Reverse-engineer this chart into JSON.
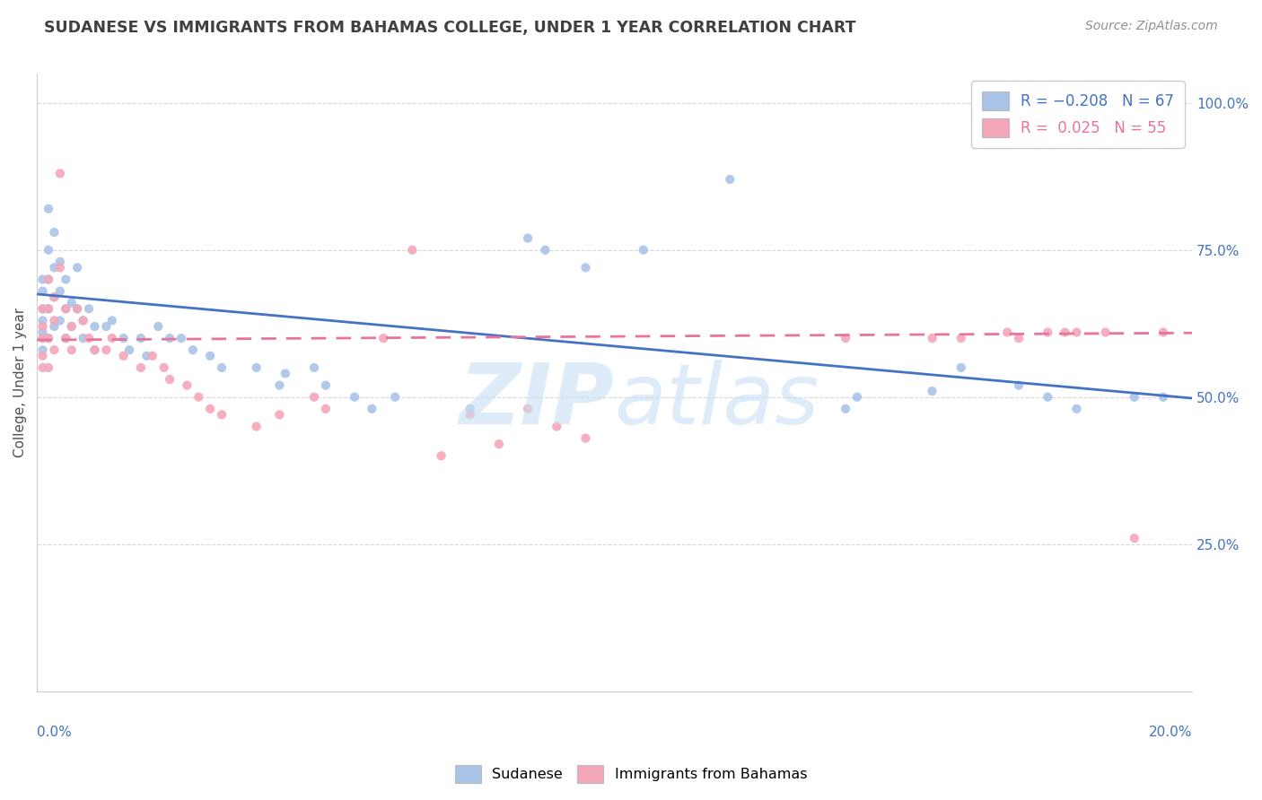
{
  "title": "SUDANESE VS IMMIGRANTS FROM BAHAMAS COLLEGE, UNDER 1 YEAR CORRELATION CHART",
  "source": "Source: ZipAtlas.com",
  "ylabel": "College, Under 1 year",
  "ylabel_right_ticks": [
    "100.0%",
    "75.0%",
    "50.0%",
    "25.0%"
  ],
  "ylabel_right_vals": [
    1.0,
    0.75,
    0.5,
    0.25
  ],
  "blue_scatter_x": [
    0.001,
    0.001,
    0.001,
    0.001,
    0.001,
    0.001,
    0.001,
    0.002,
    0.002,
    0.002,
    0.002,
    0.002,
    0.003,
    0.003,
    0.003,
    0.003,
    0.004,
    0.004,
    0.004,
    0.005,
    0.005,
    0.005,
    0.006,
    0.006,
    0.007,
    0.007,
    0.008,
    0.008,
    0.009,
    0.01,
    0.01,
    0.012,
    0.013,
    0.015,
    0.016,
    0.018,
    0.019,
    0.021,
    0.023,
    0.025,
    0.027,
    0.03,
    0.032,
    0.038,
    0.042,
    0.043,
    0.048,
    0.05,
    0.055,
    0.058,
    0.062,
    0.075,
    0.085,
    0.088,
    0.095,
    0.105,
    0.12,
    0.14,
    0.142,
    0.155,
    0.16,
    0.17,
    0.175,
    0.18,
    0.19,
    0.195
  ],
  "blue_scatter_y": [
    0.68,
    0.7,
    0.65,
    0.63,
    0.61,
    0.6,
    0.58,
    0.82,
    0.75,
    0.7,
    0.65,
    0.6,
    0.78,
    0.72,
    0.67,
    0.62,
    0.73,
    0.68,
    0.63,
    0.7,
    0.65,
    0.6,
    0.66,
    0.62,
    0.72,
    0.65,
    0.63,
    0.6,
    0.65,
    0.62,
    0.58,
    0.62,
    0.63,
    0.6,
    0.58,
    0.6,
    0.57,
    0.62,
    0.6,
    0.6,
    0.58,
    0.57,
    0.55,
    0.55,
    0.52,
    0.54,
    0.55,
    0.52,
    0.5,
    0.48,
    0.5,
    0.48,
    0.77,
    0.75,
    0.72,
    0.75,
    0.87,
    0.48,
    0.5,
    0.51,
    0.55,
    0.52,
    0.5,
    0.48,
    0.5,
    0.5
  ],
  "pink_scatter_x": [
    0.001,
    0.001,
    0.001,
    0.001,
    0.001,
    0.002,
    0.002,
    0.002,
    0.002,
    0.003,
    0.003,
    0.003,
    0.004,
    0.004,
    0.005,
    0.005,
    0.006,
    0.006,
    0.007,
    0.008,
    0.009,
    0.01,
    0.012,
    0.013,
    0.015,
    0.018,
    0.02,
    0.022,
    0.023,
    0.026,
    0.028,
    0.03,
    0.032,
    0.038,
    0.042,
    0.048,
    0.05,
    0.06,
    0.065,
    0.07,
    0.075,
    0.08,
    0.085,
    0.09,
    0.095,
    0.14,
    0.155,
    0.16,
    0.168,
    0.17,
    0.175,
    0.178,
    0.18,
    0.185,
    0.19,
    0.195
  ],
  "pink_scatter_y": [
    0.65,
    0.62,
    0.6,
    0.57,
    0.55,
    0.7,
    0.65,
    0.6,
    0.55,
    0.67,
    0.63,
    0.58,
    0.88,
    0.72,
    0.65,
    0.6,
    0.62,
    0.58,
    0.65,
    0.63,
    0.6,
    0.58,
    0.58,
    0.6,
    0.57,
    0.55,
    0.57,
    0.55,
    0.53,
    0.52,
    0.5,
    0.48,
    0.47,
    0.45,
    0.47,
    0.5,
    0.48,
    0.6,
    0.75,
    0.4,
    0.47,
    0.42,
    0.48,
    0.45,
    0.43,
    0.6,
    0.6,
    0.6,
    0.61,
    0.6,
    0.61,
    0.61,
    0.61,
    0.61,
    0.26,
    0.61
  ],
  "blue_line_x": [
    0.0,
    0.2
  ],
  "blue_line_y": [
    0.675,
    0.498
  ],
  "pink_line_x": [
    0.0,
    0.2
  ],
  "pink_line_y": [
    0.597,
    0.609
  ],
  "xlim": [
    0.0,
    0.2
  ],
  "ylim": [
    0.0,
    1.05
  ],
  "scatter_size": 55,
  "blue_color": "#aac4e8",
  "pink_color": "#f4a7b9",
  "blue_line_color": "#4472c4",
  "pink_line_color": "#e8749a",
  "background_color": "#ffffff",
  "grid_color": "#d8d8d8",
  "title_color": "#404040",
  "source_color": "#909090",
  "axis_label_color": "#4472c4",
  "right_axis_color": "#4472c4",
  "watermark_color": "#c8dff5",
  "watermark_alpha": 0.6
}
